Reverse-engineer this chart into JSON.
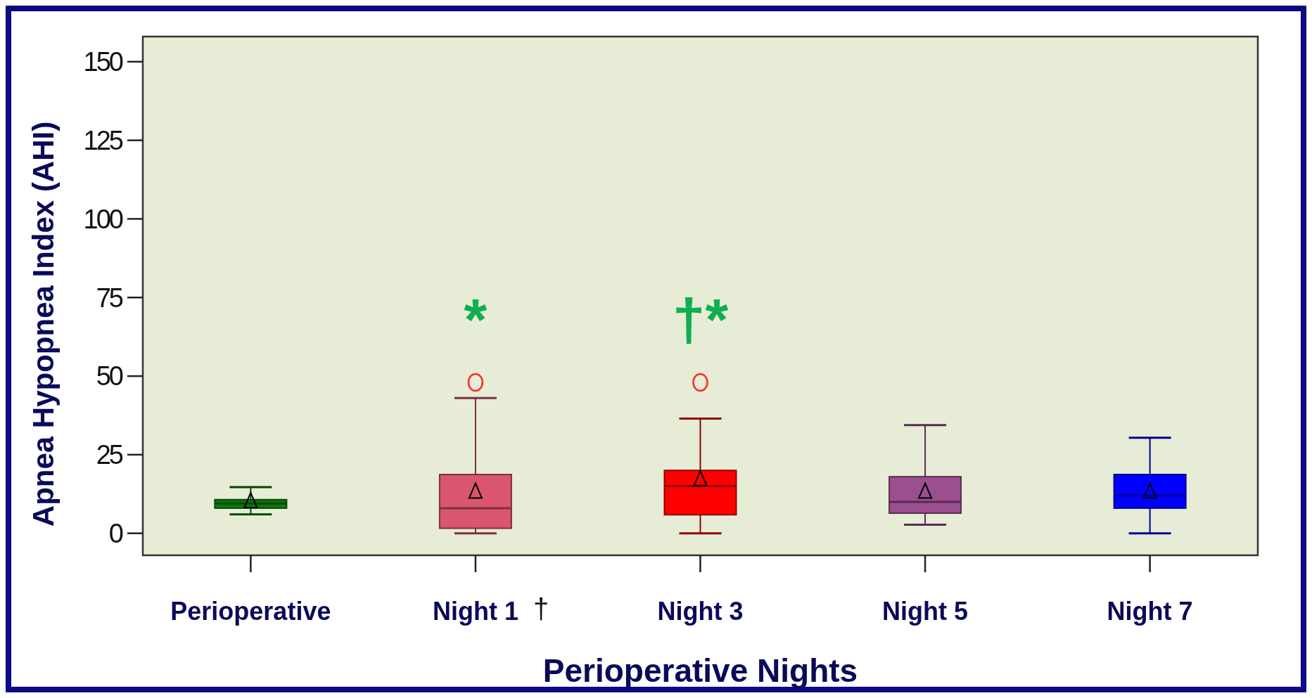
{
  "chart_data": {
    "type": "box",
    "xlabel": "Perioperative Nights",
    "ylabel": "Apnea Hypopnea Index (AHI)",
    "categories": [
      "Perioperative",
      "Night 1",
      "Night 3",
      "Night 5",
      "Night 7"
    ],
    "colors": [
      "#0b7a0b",
      "#d9566e",
      "#ff0000",
      "#9b4f8f",
      "#0000ff"
    ],
    "boxes": [
      {
        "low": 6,
        "q1": 8,
        "median": 9.5,
        "q3": 10.7,
        "high": 14.7,
        "mean": 10
      },
      {
        "low": 0,
        "q1": 1.6,
        "median": 8,
        "q3": 18.7,
        "high": 43,
        "mean": 13,
        "outliers": [
          48
        ]
      },
      {
        "low": 0,
        "q1": 5.9,
        "median": 15,
        "q3": 20,
        "high": 36.5,
        "mean": 17,
        "outliers": [
          48
        ]
      },
      {
        "low": 2.7,
        "q1": 6.4,
        "median": 10,
        "q3": 18,
        "high": 34.4,
        "mean": 13
      },
      {
        "low": 0,
        "q1": 8,
        "median": 12,
        "q3": 18.7,
        "high": 30.4,
        "mean": 13
      }
    ],
    "ylim": [
      -7,
      158
    ],
    "yticks": [
      0,
      25,
      50,
      75,
      100,
      125,
      150
    ],
    "grid": false,
    "annotations": [
      "*",
      "†*",
      "†"
    ]
  }
}
